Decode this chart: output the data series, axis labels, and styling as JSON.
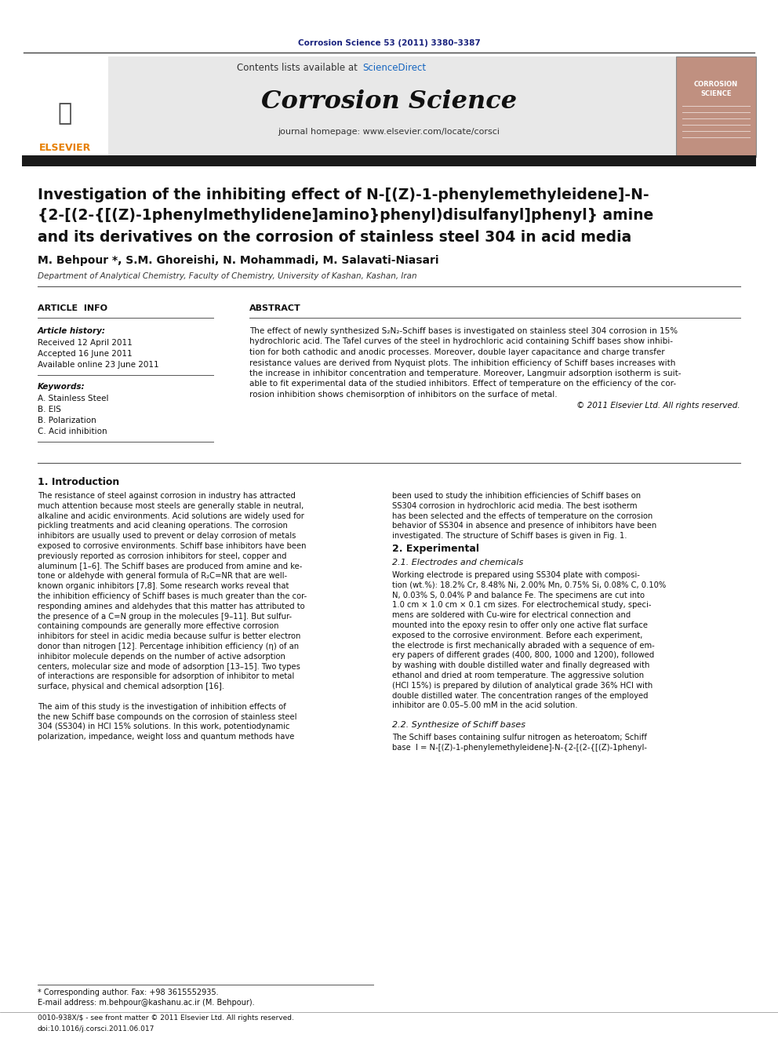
{
  "page_bg": "#ffffff",
  "top_journal_ref": "Corrosion Science 53 (2011) 3380–3387",
  "top_ref_color": "#1a237e",
  "header_bg": "#e8e8e8",
  "header_sciencedirect_color": "#1565c0",
  "journal_name": "Corrosion Science",
  "journal_homepage": "journal homepage: www.elsevier.com/locate/corsci",
  "thick_bar_color": "#1a1a1a",
  "paper_title_line1": "Investigation of the inhibiting effect of N-[(Z)-1-phenylemethyleidene]-N-",
  "paper_title_line2": "{2-[(2-{[(Z)-1phenylmethylidene]amino}phenyl)disulfanyl]phenyl} amine",
  "paper_title_line3": "and its derivatives on the corrosion of stainless steel 304 in acid media",
  "authors": "M. Behpour *, S.M. Ghoreishi, N. Mohammadi, M. Salavati-Niasari",
  "affiliation": "Department of Analytical Chemistry, Faculty of Chemistry, University of Kashan, Kashan, Iran",
  "article_info_header": "ARTICLE  INFO",
  "abstract_header": "ABSTRACT",
  "article_history_label": "Article history:",
  "received": "Received 12 April 2011",
  "accepted": "Accepted 16 June 2011",
  "available": "Available online 23 June 2011",
  "keywords_label": "Keywords:",
  "keyword1": "A. Stainless Steel",
  "keyword2": "B. EIS",
  "keyword3": "B. Polarization",
  "keyword4": "C. Acid inhibition",
  "copyright": "© 2011 Elsevier Ltd. All rights reserved.",
  "intro_header": "1. Introduction",
  "experimental_header": "2. Experimental",
  "experimental_sub": "2.1. Electrodes and chemicals",
  "synth_header": "2.2. Synthesize of Schiff bases",
  "footnote_star": "* Corresponding author. Fax: +98 3615552935.",
  "footnote_email": "E-mail address: m.behpour@kashanu.ac.ir (M. Behpour).",
  "footnote_issn": "0010-938X/$ - see front matter © 2011 Elsevier Ltd. All rights reserved.",
  "footnote_doi": "doi:10.1016/j.corsci.2011.06.017",
  "abstract_lines": [
    "The effect of newly synthesized S₂N₂-Schiff bases is investigated on stainless steel 304 corrosion in 15%",
    "hydrochloric acid. The Tafel curves of the steel in hydrochloric acid containing Schiff bases show inhibi-",
    "tion for both cathodic and anodic processes. Moreover, double layer capacitance and charge transfer",
    "resistance values are derived from Nyquist plots. The inhibition efficiency of Schiff bases increases with",
    "the increase in inhibitor concentration and temperature. Moreover, Langmuir adsorption isotherm is suit-",
    "able to fit experimental data of the studied inhibitors. Effect of temperature on the efficiency of the cor-",
    "rosion inhibition shows chemisorption of inhibitors on the surface of metal."
  ],
  "intro_left_lines": [
    "The resistance of steel against corrosion in industry has attracted",
    "much attention because most steels are generally stable in neutral,",
    "alkaline and acidic environments. Acid solutions are widely used for",
    "pickling treatments and acid cleaning operations. The corrosion",
    "inhibitors are usually used to prevent or delay corrosion of metals",
    "exposed to corrosive environments. Schiff base inhibitors have been",
    "previously reported as corrosion inhibitors for steel, copper and",
    "aluminum [1–6]. The Schiff bases are produced from amine and ke-",
    "tone or aldehyde with general formula of R₂C=NR that are well-",
    "known organic inhibitors [7,8]. Some research works reveal that",
    "the inhibition efficiency of Schiff bases is much greater than the cor-",
    "responding amines and aldehydes that this matter has attributed to",
    "the presence of a C=N group in the molecules [9–11]. But sulfur-",
    "containing compounds are generally more effective corrosion",
    "inhibitors for steel in acidic media because sulfur is better electron",
    "donor than nitrogen [12]. Percentage inhibition efficiency (η) of an",
    "inhibitor molecule depends on the number of active adsorption",
    "centers, molecular size and mode of adsorption [13–15]. Two types",
    "of interactions are responsible for adsorption of inhibitor to metal",
    "surface, physical and chemical adsorption [16].",
    "",
    "The aim of this study is the investigation of inhibition effects of",
    "the new Schiff base compounds on the corrosion of stainless steel",
    "304 (SS304) in HCl 15% solutions. In this work, potentiodynamic",
    "polarization, impedance, weight loss and quantum methods have"
  ],
  "intro_right_lines": [
    "been used to study the inhibition efficiencies of Schiff bases on",
    "SS304 corrosion in hydrochloric acid media. The best isotherm",
    "has been selected and the effects of temperature on the corrosion",
    "behavior of SS304 in absence and presence of inhibitors have been",
    "investigated. The structure of Schiff bases is given in Fig. 1."
  ],
  "exp_lines": [
    "Working electrode is prepared using SS304 plate with composi-",
    "tion (wt.%): 18.2% Cr, 8.48% Ni, 2.00% Mn, 0.75% Si, 0.08% C, 0.10%",
    "N, 0.03% S, 0.04% P and balance Fe. The specimens are cut into",
    "1.0 cm × 1.0 cm × 0.1 cm sizes. For electrochemical study, speci-",
    "mens are soldered with Cu-wire for electrical connection and",
    "mounted into the epoxy resin to offer only one active flat surface",
    "exposed to the corrosive environment. Before each experiment,",
    "the electrode is first mechanically abraded with a sequence of em-",
    "ery papers of different grades (400, 800, 1000 and 1200), followed",
    "by washing with double distilled water and finally degreased with",
    "ethanol and dried at room temperature. The aggressive solution",
    "(HCl 15%) is prepared by dilution of analytical grade 36% HCl with",
    "double distilled water. The concentration ranges of the employed",
    "inhibitor are 0.05–5.00 mM in the acid solution."
  ],
  "synth_lines": [
    "The Schiff bases containing sulfur nitrogen as heteroatom; Schiff",
    "base  I = N-[(Z)-1-phenylemethyleidene]-N-{2-[(2-{[(Z)-1phenyl-"
  ]
}
